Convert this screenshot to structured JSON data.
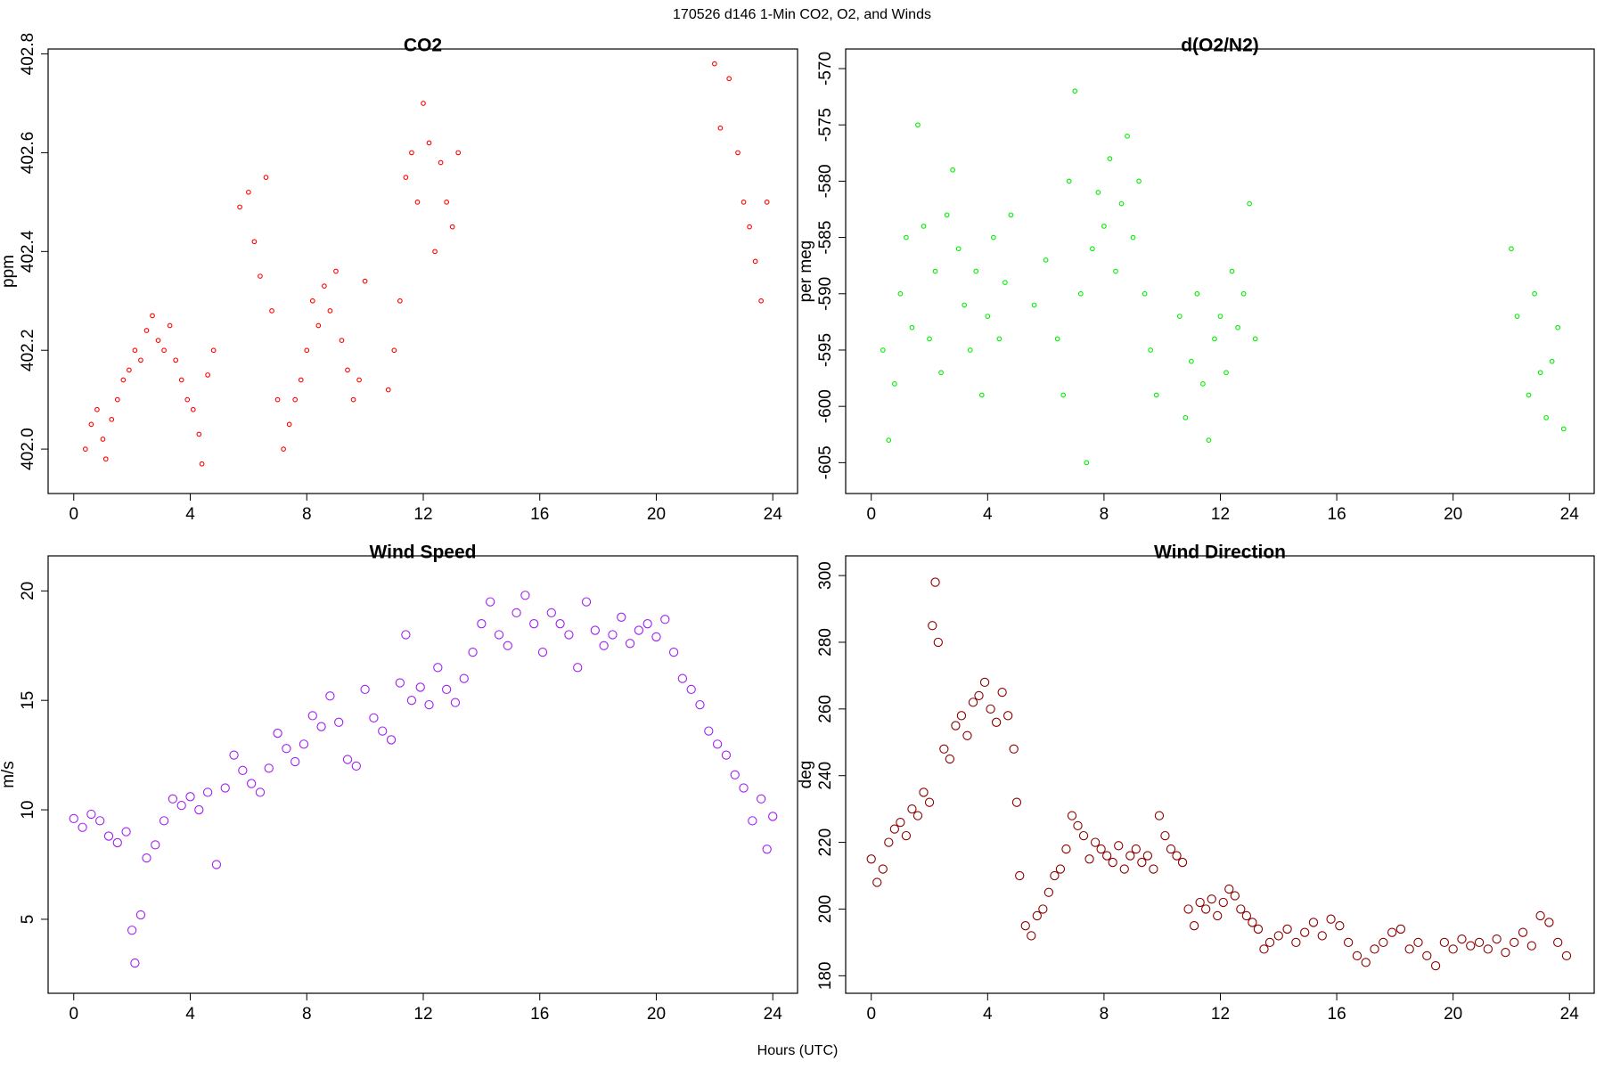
{
  "title": "170526   d146   1-Min CO2, O2, and Winds",
  "xlabel": "Hours (UTC)",
  "chart_data": [
    {
      "type": "scatter",
      "title": "CO2",
      "ylabel": "ppm",
      "color": "#ff0000",
      "marker": "small",
      "xlim": [
        -0.88,
        24.85
      ],
      "xticks": [
        0,
        4,
        8,
        12,
        16,
        20,
        24
      ],
      "ylim": [
        401.91,
        402.81
      ],
      "yticks": [
        {
          "value": 402,
          "label": "402.0"
        },
        402.2,
        402.4,
        402.6,
        402.8
      ],
      "x": [
        0.4,
        0.6,
        0.8,
        1.0,
        1.1,
        1.3,
        1.5,
        1.7,
        1.9,
        2.1,
        2.3,
        2.5,
        2.7,
        2.9,
        3.1,
        3.3,
        3.5,
        3.7,
        3.9,
        4.1,
        4.3,
        4.4,
        4.6,
        4.8,
        5.7,
        6.0,
        6.2,
        6.4,
        6.6,
        6.8,
        7.0,
        7.2,
        7.4,
        7.6,
        7.8,
        8.0,
        8.2,
        8.4,
        8.6,
        8.8,
        9.0,
        9.2,
        9.4,
        9.6,
        9.8,
        10.0,
        10.8,
        11.0,
        11.2,
        11.4,
        11.6,
        11.8,
        12.0,
        12.2,
        12.4,
        12.6,
        12.8,
        13.0,
        13.2,
        22.0,
        22.2,
        22.5,
        22.8,
        23.0,
        23.2,
        23.4,
        23.6,
        23.8
      ],
      "values": [
        402.0,
        402.05,
        402.08,
        402.02,
        401.98,
        402.06,
        402.1,
        402.14,
        402.16,
        402.2,
        402.18,
        402.24,
        402.27,
        402.22,
        402.2,
        402.25,
        402.18,
        402.14,
        402.1,
        402.08,
        402.03,
        401.97,
        402.15,
        402.2,
        402.49,
        402.52,
        402.42,
        402.35,
        402.55,
        402.28,
        402.1,
        402.0,
        402.05,
        402.1,
        402.14,
        402.2,
        402.3,
        402.25,
        402.33,
        402.28,
        402.36,
        402.22,
        402.16,
        402.1,
        402.14,
        402.34,
        402.12,
        402.2,
        402.3,
        402.55,
        402.6,
        402.5,
        402.7,
        402.62,
        402.4,
        402.58,
        402.5,
        402.45,
        402.6,
        402.78,
        402.65,
        402.75,
        402.6,
        402.5,
        402.45,
        402.38,
        402.3,
        402.5
      ]
    },
    {
      "type": "scatter",
      "title": "d(O2/N2)",
      "ylabel": "per meg",
      "color": "#00ee00",
      "marker": "small",
      "xlim": [
        -0.88,
        24.85
      ],
      "xticks": [
        0,
        4,
        8,
        12,
        16,
        20,
        24
      ],
      "ylim": [
        -607.74,
        -568.26
      ],
      "yticks": [
        -605,
        -600,
        -595,
        -590,
        -585,
        -580,
        -575,
        -570
      ],
      "x": [
        0.4,
        0.6,
        0.8,
        1.0,
        1.2,
        1.4,
        1.6,
        1.8,
        2.0,
        2.2,
        2.4,
        2.6,
        2.8,
        3.0,
        3.2,
        3.4,
        3.6,
        3.8,
        4.0,
        4.2,
        4.4,
        4.6,
        4.8,
        5.6,
        6.0,
        6.4,
        6.6,
        6.8,
        7.0,
        7.2,
        7.4,
        7.6,
        7.8,
        8.0,
        8.2,
        8.4,
        8.6,
        8.8,
        9.0,
        9.2,
        9.4,
        9.6,
        9.8,
        10.6,
        10.8,
        11.0,
        11.2,
        11.4,
        11.6,
        11.8,
        12.0,
        12.2,
        12.4,
        12.6,
        12.8,
        13.0,
        13.2,
        22.0,
        22.2,
        22.6,
        22.8,
        23.0,
        23.2,
        23.4,
        23.6,
        23.8
      ],
      "values": [
        -595,
        -603,
        -598,
        -590,
        -585,
        -593,
        -575,
        -584,
        -594,
        -588,
        -597,
        -583,
        -579,
        -586,
        -591,
        -595,
        -588,
        -599,
        -592,
        -585,
        -594,
        -589,
        -583,
        -591,
        -587,
        -594,
        -599,
        -580,
        -572,
        -590,
        -605,
        -586,
        -581,
        -584,
        -578,
        -588,
        -582,
        -576,
        -585,
        -580,
        -590,
        -595,
        -599,
        -592,
        -601,
        -596,
        -590,
        -598,
        -603,
        -594,
        -592,
        -597,
        -588,
        -593,
        -590,
        -582,
        -594,
        -586,
        -592,
        -599,
        -590,
        -597,
        -601,
        -596,
        -593,
        -602
      ]
    },
    {
      "type": "scatter",
      "title": "Wind Speed",
      "ylabel": "m/s",
      "color": "#a020f0",
      "marker": "large",
      "xlim": [
        -0.88,
        24.85
      ],
      "xticks": [
        0,
        4,
        8,
        12,
        16,
        20,
        24
      ],
      "ylim": [
        1.62,
        21.6
      ],
      "yticks": [
        5,
        10,
        15,
        20
      ],
      "x": [
        0.0,
        0.3,
        0.6,
        0.9,
        1.2,
        1.5,
        1.8,
        2.0,
        2.1,
        2.3,
        2.5,
        2.8,
        3.1,
        3.4,
        3.7,
        4.0,
        4.3,
        4.6,
        4.9,
        5.2,
        5.5,
        5.8,
        6.1,
        6.4,
        6.7,
        7.0,
        7.3,
        7.6,
        7.9,
        8.2,
        8.5,
        8.8,
        9.1,
        9.4,
        9.7,
        10.0,
        10.3,
        10.6,
        10.9,
        11.2,
        11.4,
        11.6,
        11.9,
        12.2,
        12.5,
        12.8,
        13.1,
        13.4,
        13.7,
        14.0,
        14.3,
        14.6,
        14.9,
        15.2,
        15.5,
        15.8,
        16.1,
        16.4,
        16.7,
        17.0,
        17.3,
        17.6,
        17.9,
        18.2,
        18.5,
        18.8,
        19.1,
        19.4,
        19.7,
        20.0,
        20.3,
        20.6,
        20.9,
        21.2,
        21.5,
        21.8,
        22.1,
        22.4,
        22.7,
        23.0,
        23.3,
        23.6,
        23.8,
        24.0
      ],
      "values": [
        9.6,
        9.2,
        9.8,
        9.5,
        8.8,
        8.5,
        9.0,
        4.5,
        3.0,
        5.2,
        7.8,
        8.4,
        9.5,
        10.5,
        10.2,
        10.6,
        10.0,
        10.8,
        7.5,
        11.0,
        12.5,
        11.8,
        11.2,
        10.8,
        11.9,
        13.5,
        12.8,
        12.2,
        13.0,
        14.3,
        13.8,
        15.2,
        14.0,
        12.3,
        12.0,
        15.5,
        14.2,
        13.6,
        13.2,
        15.8,
        18.0,
        15.0,
        15.6,
        14.8,
        16.5,
        15.5,
        14.9,
        16.0,
        17.2,
        18.5,
        19.5,
        18.0,
        17.5,
        19.0,
        19.8,
        18.5,
        17.2,
        19.0,
        18.5,
        18.0,
        16.5,
        19.5,
        18.2,
        17.5,
        18.0,
        18.8,
        17.6,
        18.2,
        18.5,
        17.9,
        18.7,
        17.2,
        16.0,
        15.5,
        14.8,
        13.6,
        13.0,
        12.5,
        11.6,
        11.0,
        9.5,
        10.5,
        8.2,
        9.7
      ]
    },
    {
      "type": "scatter",
      "title": "Wind Direction",
      "ylabel": "deg",
      "color": "#8b0000",
      "marker": "large",
      "xlim": [
        -0.88,
        24.85
      ],
      "xticks": [
        0,
        4,
        8,
        12,
        16,
        20,
        24
      ],
      "ylim": [
        174.75,
        305.9
      ],
      "yticks": [
        180,
        200,
        220,
        240,
        260,
        280,
        300
      ],
      "x": [
        0.0,
        0.2,
        0.4,
        0.6,
        0.8,
        1.0,
        1.2,
        1.4,
        1.6,
        1.8,
        2.0,
        2.1,
        2.2,
        2.3,
        2.5,
        2.7,
        2.9,
        3.1,
        3.3,
        3.5,
        3.7,
        3.9,
        4.1,
        4.3,
        4.5,
        4.7,
        4.9,
        5.0,
        5.1,
        5.3,
        5.5,
        5.7,
        5.9,
        6.1,
        6.3,
        6.5,
        6.7,
        6.9,
        7.1,
        7.3,
        7.5,
        7.7,
        7.9,
        8.1,
        8.3,
        8.5,
        8.7,
        8.9,
        9.1,
        9.3,
        9.5,
        9.7,
        9.9,
        10.1,
        10.3,
        10.5,
        10.7,
        10.9,
        11.1,
        11.3,
        11.5,
        11.7,
        11.9,
        12.1,
        12.3,
        12.5,
        12.7,
        12.9,
        13.1,
        13.3,
        13.5,
        13.7,
        14.0,
        14.3,
        14.6,
        14.9,
        15.2,
        15.5,
        15.8,
        16.1,
        16.4,
        16.7,
        17.0,
        17.3,
        17.6,
        17.9,
        18.2,
        18.5,
        18.8,
        19.1,
        19.4,
        19.7,
        20.0,
        20.3,
        20.6,
        20.9,
        21.2,
        21.5,
        21.8,
        22.1,
        22.4,
        22.7,
        23.0,
        23.3,
        23.6,
        23.9
      ],
      "values": [
        215,
        208,
        212,
        220,
        224,
        226,
        222,
        230,
        228,
        235,
        232,
        285,
        298,
        280,
        248,
        245,
        255,
        258,
        252,
        262,
        264,
        268,
        260,
        256,
        265,
        258,
        248,
        232,
        210,
        195,
        192,
        198,
        200,
        205,
        210,
        212,
        218,
        228,
        225,
        222,
        215,
        220,
        218,
        216,
        214,
        219,
        212,
        216,
        218,
        214,
        216,
        212,
        228,
        222,
        218,
        216,
        214,
        200,
        195,
        202,
        200,
        203,
        198,
        202,
        206,
        204,
        200,
        198,
        196,
        194,
        188,
        190,
        192,
        194,
        190,
        193,
        196,
        192,
        197,
        195,
        190,
        186,
        184,
        188,
        190,
        193,
        194,
        188,
        190,
        186,
        183,
        190,
        188,
        191,
        189,
        190,
        188,
        191,
        187,
        190,
        193,
        189,
        198,
        196,
        190,
        186
      ]
    }
  ]
}
